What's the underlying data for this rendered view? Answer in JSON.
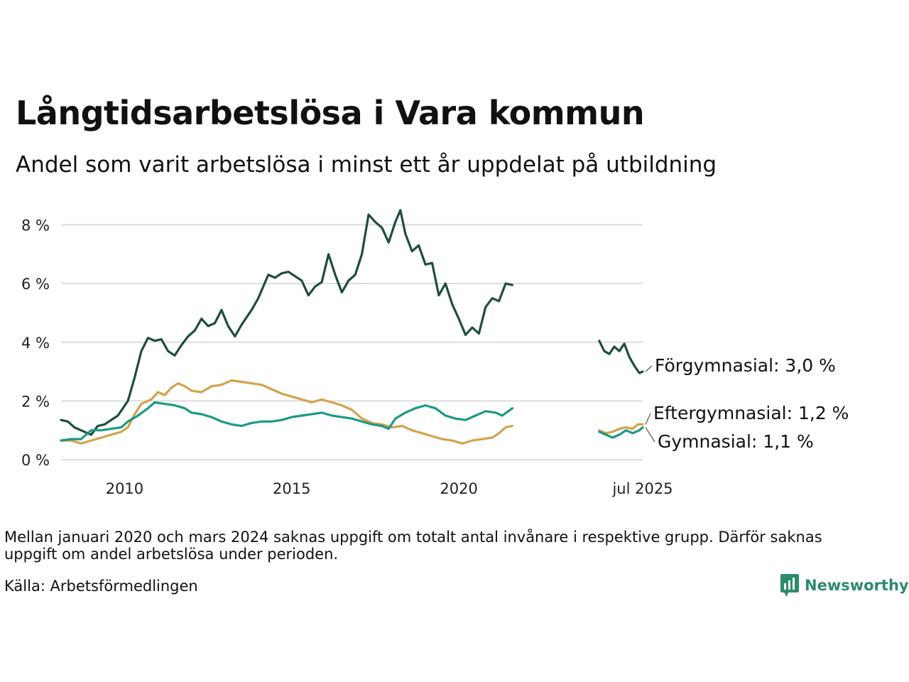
{
  "title": "Långtidsarbetslösa i Vara kommun",
  "subtitle": "Andel som varit arbetslösa i minst ett år uppdelat på utbildning",
  "note": "Mellan januari 2020 och mars 2024 saknas uppgift om totalt antal invånare i respektive grupp. Därför saknas uppgift om andel arbetslösa under perioden.",
  "source": "Källa: Arbetsförmedlingen",
  "brand": {
    "name": "Newsworthy",
    "icon": "newsworthy-logo-icon",
    "color": "#2e8b6a"
  },
  "chart_data": {
    "type": "line",
    "title": "Långtidsarbetslösa i Vara kommun",
    "subtitle": "Andel som varit arbetslösa i minst ett år uppdelat på utbildning",
    "xlabel": "",
    "ylabel": "",
    "xlim": [
      2008.1,
      2025.5
    ],
    "ylim": [
      0,
      8.5
    ],
    "grid": "horizontal",
    "legend": "direct labels at line ends",
    "y_ticks": [
      {
        "value": 0,
        "label": "0 %"
      },
      {
        "value": 2,
        "label": "2 %"
      },
      {
        "value": 4,
        "label": "4 %"
      },
      {
        "value": 6,
        "label": "6 %"
      },
      {
        "value": 8,
        "label": "8 %"
      }
    ],
    "x_ticks": [
      {
        "value": 2010,
        "label": "2010"
      },
      {
        "value": 2015,
        "label": "2015"
      },
      {
        "value": 2020,
        "label": "2020"
      },
      {
        "value": 2025.5,
        "label": "jul 2025"
      }
    ],
    "series": [
      {
        "name": "Förgymnasial",
        "end_label": "Förgymnasial: 3,0 %",
        "color": "#1f4d3e",
        "segments": [
          [
            [
              2008.1,
              1.35
            ],
            [
              2008.3,
              1.3
            ],
            [
              2008.5,
              1.1
            ],
            [
              2008.8,
              0.95
            ],
            [
              2009.0,
              0.85
            ],
            [
              2009.2,
              1.15
            ],
            [
              2009.4,
              1.2
            ],
            [
              2009.6,
              1.35
            ],
            [
              2009.8,
              1.5
            ],
            [
              2010.1,
              2.0
            ],
            [
              2010.3,
              2.8
            ],
            [
              2010.5,
              3.7
            ],
            [
              2010.7,
              4.15
            ],
            [
              2010.9,
              4.05
            ],
            [
              2011.1,
              4.1
            ],
            [
              2011.3,
              3.7
            ],
            [
              2011.5,
              3.55
            ],
            [
              2011.7,
              3.9
            ],
            [
              2011.9,
              4.2
            ],
            [
              2012.1,
              4.4
            ],
            [
              2012.3,
              4.8
            ],
            [
              2012.5,
              4.55
            ],
            [
              2012.7,
              4.65
            ],
            [
              2012.9,
              5.1
            ],
            [
              2013.1,
              4.55
            ],
            [
              2013.3,
              4.2
            ],
            [
              2013.5,
              4.6
            ],
            [
              2013.8,
              5.1
            ],
            [
              2014.0,
              5.5
            ],
            [
              2014.3,
              6.3
            ],
            [
              2014.5,
              6.2
            ],
            [
              2014.7,
              6.35
            ],
            [
              2014.9,
              6.4
            ],
            [
              2015.1,
              6.25
            ],
            [
              2015.3,
              6.1
            ],
            [
              2015.5,
              5.6
            ],
            [
              2015.7,
              5.9
            ],
            [
              2015.9,
              6.05
            ],
            [
              2016.1,
              7.0
            ],
            [
              2016.3,
              6.3
            ],
            [
              2016.5,
              5.7
            ],
            [
              2016.7,
              6.1
            ],
            [
              2016.9,
              6.3
            ],
            [
              2017.1,
              7.0
            ],
            [
              2017.3,
              8.35
            ],
            [
              2017.5,
              8.1
            ],
            [
              2017.7,
              7.9
            ],
            [
              2017.9,
              7.4
            ],
            [
              2018.1,
              8.1
            ],
            [
              2018.25,
              8.5
            ],
            [
              2018.4,
              7.7
            ],
            [
              2018.6,
              7.1
            ],
            [
              2018.8,
              7.3
            ],
            [
              2019.0,
              6.65
            ],
            [
              2019.2,
              6.7
            ],
            [
              2019.4,
              5.6
            ],
            [
              2019.6,
              6.0
            ],
            [
              2019.8,
              5.3
            ],
            [
              2020.0,
              4.8
            ],
            [
              2020.2,
              4.25
            ],
            [
              2020.4,
              4.5
            ],
            [
              2020.6,
              4.3
            ],
            [
              2020.8,
              5.2
            ],
            [
              2021.0,
              5.5
            ],
            [
              2021.2,
              5.4
            ],
            [
              2021.4,
              6.0
            ],
            [
              2021.6,
              5.95
            ]
          ],
          [
            [
              2024.2,
              4.05
            ],
            [
              2024.35,
              3.7
            ],
            [
              2024.5,
              3.6
            ],
            [
              2024.65,
              3.85
            ],
            [
              2024.8,
              3.7
            ],
            [
              2024.95,
              3.95
            ],
            [
              2025.1,
              3.5
            ],
            [
              2025.25,
              3.2
            ],
            [
              2025.4,
              2.95
            ],
            [
              2025.5,
              3.0
            ]
          ]
        ]
      },
      {
        "name": "Eftergymnasial",
        "end_label": "Eftergymnasial: 1,2 %",
        "color": "#d4a24e",
        "segments": [
          [
            [
              2008.1,
              0.65
            ],
            [
              2008.4,
              0.65
            ],
            [
              2008.7,
              0.55
            ],
            [
              2009.0,
              0.65
            ],
            [
              2009.3,
              0.75
            ],
            [
              2009.6,
              0.85
            ],
            [
              2009.9,
              0.95
            ],
            [
              2010.1,
              1.1
            ],
            [
              2010.3,
              1.55
            ],
            [
              2010.5,
              1.9
            ],
            [
              2010.8,
              2.05
            ],
            [
              2011.0,
              2.3
            ],
            [
              2011.2,
              2.2
            ],
            [
              2011.4,
              2.45
            ],
            [
              2011.6,
              2.6
            ],
            [
              2011.8,
              2.5
            ],
            [
              2012.0,
              2.35
            ],
            [
              2012.3,
              2.3
            ],
            [
              2012.6,
              2.5
            ],
            [
              2012.9,
              2.55
            ],
            [
              2013.2,
              2.7
            ],
            [
              2013.5,
              2.65
            ],
            [
              2013.8,
              2.6
            ],
            [
              2014.1,
              2.55
            ],
            [
              2014.4,
              2.4
            ],
            [
              2014.7,
              2.25
            ],
            [
              2015.0,
              2.15
            ],
            [
              2015.3,
              2.05
            ],
            [
              2015.6,
              1.95
            ],
            [
              2015.9,
              2.05
            ],
            [
              2016.2,
              1.95
            ],
            [
              2016.5,
              1.85
            ],
            [
              2016.8,
              1.7
            ],
            [
              2017.1,
              1.4
            ],
            [
              2017.4,
              1.25
            ],
            [
              2017.7,
              1.2
            ],
            [
              2018.0,
              1.1
            ],
            [
              2018.3,
              1.15
            ],
            [
              2018.6,
              1.0
            ],
            [
              2018.9,
              0.9
            ],
            [
              2019.2,
              0.8
            ],
            [
              2019.5,
              0.7
            ],
            [
              2019.8,
              0.65
            ],
            [
              2020.1,
              0.55
            ],
            [
              2020.4,
              0.65
            ],
            [
              2020.7,
              0.7
            ],
            [
              2021.0,
              0.75
            ],
            [
              2021.2,
              0.9
            ],
            [
              2021.4,
              1.1
            ],
            [
              2021.6,
              1.15
            ]
          ],
          [
            [
              2024.2,
              1.0
            ],
            [
              2024.4,
              0.9
            ],
            [
              2024.6,
              0.95
            ],
            [
              2024.8,
              1.05
            ],
            [
              2025.0,
              1.1
            ],
            [
              2025.2,
              1.05
            ],
            [
              2025.35,
              1.2
            ],
            [
              2025.5,
              1.2
            ]
          ]
        ]
      },
      {
        "name": "Gymnasial",
        "end_label": "Gymnasial: 1,1 %",
        "color": "#1b9a83",
        "segments": [
          [
            [
              2008.1,
              0.65
            ],
            [
              2008.4,
              0.7
            ],
            [
              2008.7,
              0.7
            ],
            [
              2009.0,
              1.0
            ],
            [
              2009.3,
              1.0
            ],
            [
              2009.6,
              1.05
            ],
            [
              2009.9,
              1.1
            ],
            [
              2010.1,
              1.3
            ],
            [
              2010.4,
              1.5
            ],
            [
              2010.7,
              1.75
            ],
            [
              2010.9,
              1.95
            ],
            [
              2011.2,
              1.9
            ],
            [
              2011.5,
              1.85
            ],
            [
              2011.8,
              1.75
            ],
            [
              2012.0,
              1.6
            ],
            [
              2012.3,
              1.55
            ],
            [
              2012.6,
              1.45
            ],
            [
              2012.9,
              1.3
            ],
            [
              2013.2,
              1.2
            ],
            [
              2013.5,
              1.15
            ],
            [
              2013.8,
              1.25
            ],
            [
              2014.1,
              1.3
            ],
            [
              2014.4,
              1.3
            ],
            [
              2014.7,
              1.35
            ],
            [
              2015.0,
              1.45
            ],
            [
              2015.3,
              1.5
            ],
            [
              2015.6,
              1.55
            ],
            [
              2015.9,
              1.6
            ],
            [
              2016.2,
              1.5
            ],
            [
              2016.5,
              1.45
            ],
            [
              2016.8,
              1.4
            ],
            [
              2017.1,
              1.3
            ],
            [
              2017.4,
              1.2
            ],
            [
              2017.7,
              1.15
            ],
            [
              2017.9,
              1.05
            ],
            [
              2018.1,
              1.4
            ],
            [
              2018.4,
              1.6
            ],
            [
              2018.7,
              1.75
            ],
            [
              2019.0,
              1.85
            ],
            [
              2019.3,
              1.75
            ],
            [
              2019.6,
              1.5
            ],
            [
              2019.9,
              1.4
            ],
            [
              2020.2,
              1.35
            ],
            [
              2020.5,
              1.5
            ],
            [
              2020.8,
              1.65
            ],
            [
              2021.1,
              1.6
            ],
            [
              2021.3,
              1.5
            ],
            [
              2021.6,
              1.75
            ]
          ],
          [
            [
              2024.2,
              0.95
            ],
            [
              2024.4,
              0.85
            ],
            [
              2024.6,
              0.75
            ],
            [
              2024.8,
              0.85
            ],
            [
              2025.0,
              1.0
            ],
            [
              2025.2,
              0.9
            ],
            [
              2025.4,
              1.0
            ],
            [
              2025.5,
              1.1
            ]
          ]
        ]
      }
    ]
  }
}
